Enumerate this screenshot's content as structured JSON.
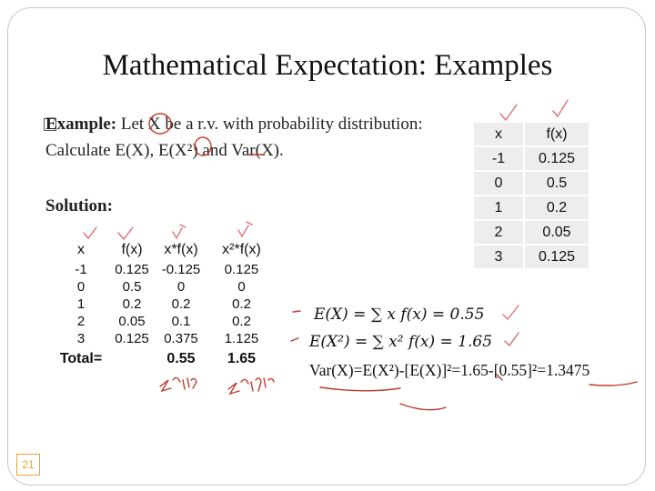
{
  "title": "Mathematical Expectation: Examples",
  "example": {
    "label": "Example:",
    "text": "Let X be a r.v. with probability distribution:",
    "line2": "Calculate E(X), E(X²) and Var(X)."
  },
  "solution_label": "Solution:",
  "distribution_table": {
    "headers": [
      "x",
      "f(x)"
    ],
    "rows": [
      [
        "-1",
        "0.125"
      ],
      [
        "0",
        "0.5"
      ],
      [
        "1",
        "0.2"
      ],
      [
        "2",
        "0.05"
      ],
      [
        "3",
        "0.125"
      ]
    ]
  },
  "solution_table": {
    "headers": [
      "x",
      "f(x)",
      "x*f(x)",
      "x²*f(x)"
    ],
    "rows": [
      [
        "-1",
        "0.125",
        "-0.125",
        "0.125"
      ],
      [
        "0",
        "0.5",
        "0",
        "0"
      ],
      [
        "1",
        "0.2",
        "0.2",
        "0.2"
      ],
      [
        "2",
        "0.05",
        "0.1",
        "0.2"
      ],
      [
        "3",
        "0.125",
        "0.375",
        "1.125"
      ]
    ],
    "total_label": "Total=",
    "total_xfx": "0.55",
    "total_x2fx": "1.65"
  },
  "equations": {
    "ex": "E(X) = ∑ x f(x) = 0.55",
    "ex2": "E(X²) = ∑ x² f(x) = 1.65",
    "var": "Var(X)=E(X²)-[E(X)]²=1.65-[0.55]²=1.3475"
  },
  "page_number": "21",
  "colors": {
    "ink": "#c0392b",
    "tick": "#e07070",
    "accent": "#e8a23a",
    "cell": "#ededed"
  }
}
